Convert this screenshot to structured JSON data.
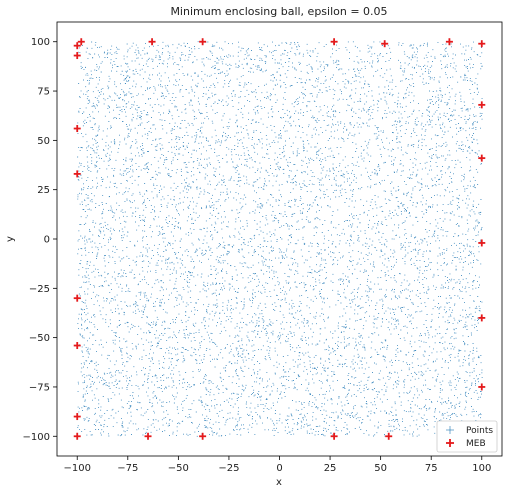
{
  "chart_data": {
    "type": "scatter",
    "title": "Minimum enclosing ball, epsilon = 0.05",
    "xlabel": "x",
    "ylabel": "y",
    "xlim": [
      -110,
      110
    ],
    "ylim": [
      -110,
      110
    ],
    "xticks": [
      -100,
      -75,
      -50,
      -25,
      0,
      25,
      50,
      75,
      100
    ],
    "yticks": [
      -100,
      -75,
      -50,
      -25,
      0,
      25,
      50,
      75,
      100
    ],
    "xtick_labels": [
      "−100",
      "−75",
      "−50",
      "−25",
      "0",
      "25",
      "50",
      "75",
      "100"
    ],
    "ytick_labels": [
      "−100",
      "−75",
      "−50",
      "−25",
      "0",
      "25",
      "50",
      "75",
      "100"
    ],
    "grid": false,
    "legend": {
      "placement": "bottom-right",
      "entries": [
        "Points",
        "MEB"
      ]
    },
    "series": [
      {
        "name": "Points",
        "marker": "point",
        "color": "#1f77b4",
        "distribution": "uniform",
        "x_range": [
          -100,
          100
        ],
        "y_range": [
          -100,
          100
        ],
        "count": 10000
      },
      {
        "name": "MEB",
        "marker": "plus",
        "color": "#e41a1c",
        "points": [
          [
            -98,
            100
          ],
          [
            -100,
            98
          ],
          [
            -100,
            93
          ],
          [
            -63,
            100
          ],
          [
            -38,
            100
          ],
          [
            27,
            100
          ],
          [
            52,
            99
          ],
          [
            84,
            100
          ],
          [
            100,
            99
          ],
          [
            100,
            68
          ],
          [
            -100,
            56
          ],
          [
            100,
            41
          ],
          [
            -100,
            33
          ],
          [
            100,
            -2
          ],
          [
            -100,
            -30
          ],
          [
            100,
            -40
          ],
          [
            -100,
            -54
          ],
          [
            100,
            -75
          ],
          [
            -100,
            -90
          ],
          [
            -100,
            -100
          ],
          [
            -65,
            -100
          ],
          [
            -38,
            -100
          ],
          [
            27,
            -100
          ],
          [
            54,
            -100
          ]
        ]
      }
    ]
  }
}
